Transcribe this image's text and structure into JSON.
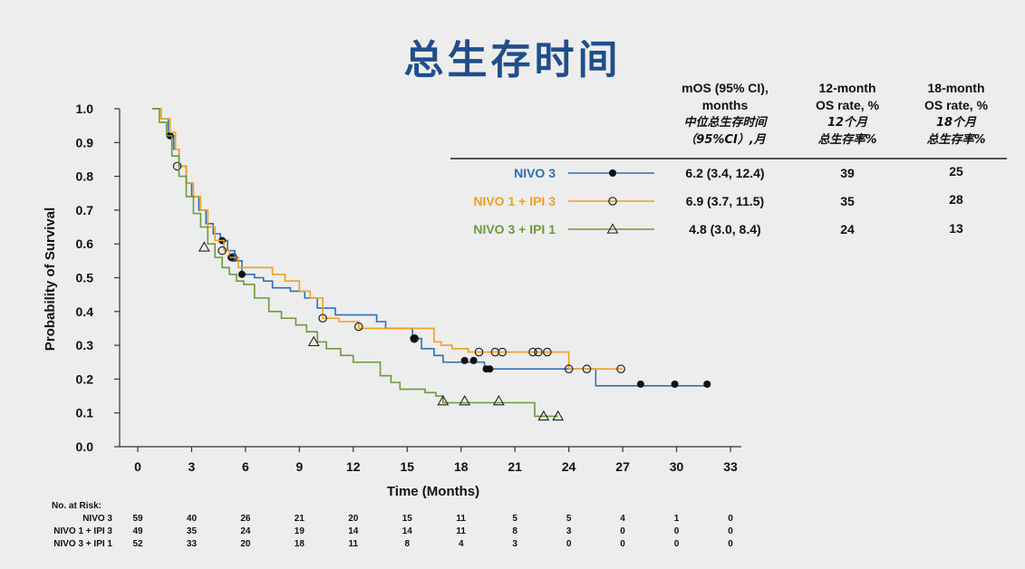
{
  "title": "总生存时间",
  "table": {
    "col1": {
      "en1": "mOS (95% CI),",
      "en2": "months",
      "zh1": "中位总生存时间",
      "zh2": "（95%CI）,月"
    },
    "col2": {
      "en1": "12-month",
      "en2": "OS rate, %",
      "zh1": "12个月",
      "zh2": "总生存率%"
    },
    "col3": {
      "en1": "18-month",
      "en2": "OS rate, %",
      "zh1": "18个月",
      "zh2": "总生存率%"
    },
    "rows": [
      {
        "name": "NIVO 3",
        "mos": "6.2 (3.4, 12.4)",
        "os12": "39",
        "os18": "25"
      },
      {
        "name": "NIVO 1 + IPI 3",
        "mos": "6.9 (3.7, 11.5)",
        "os12": "35",
        "os18": "28"
      },
      {
        "name": "NIVO 3 + IPI 1",
        "mos": "4.8 (3.0, 8.4)",
        "os12": "24",
        "os18": "13"
      }
    ]
  },
  "risk_table": {
    "header": "No. at Risk:",
    "rows": [
      {
        "label": "NIVO 3",
        "values": [
          "59",
          "40",
          "26",
          "21",
          "20",
          "15",
          "11",
          "5",
          "5",
          "4",
          "1",
          "0"
        ]
      },
      {
        "label": "NIVO 1 + IPI 3",
        "values": [
          "49",
          "35",
          "24",
          "19",
          "14",
          "14",
          "11",
          "8",
          "3",
          "0",
          "0",
          "0"
        ]
      },
      {
        "label": "NIVO 3 + IPI 1",
        "values": [
          "52",
          "33",
          "20",
          "18",
          "11",
          "8",
          "4",
          "3",
          "0",
          "0",
          "0",
          "0"
        ]
      }
    ]
  },
  "chart_data": {
    "type": "line",
    "xlabel": "Time (Months)",
    "ylabel": "Probability of Survival",
    "xlim": [
      0,
      33
    ],
    "ylim": [
      0,
      1.0
    ],
    "x_ticks": [
      "0",
      "3",
      "6",
      "9",
      "12",
      "15",
      "18",
      "21",
      "24",
      "27",
      "30",
      "33"
    ],
    "y_ticks": [
      "0.0",
      "0.1",
      "0.2",
      "0.3",
      "0.4",
      "0.5",
      "0.6",
      "0.7",
      "0.8",
      "0.9",
      "1.0"
    ],
    "grid": false,
    "series": [
      {
        "name": "NIVO 3",
        "color": "#2e6fb5",
        "marker": "filled-circle",
        "steps": [
          [
            0.8,
            1.0
          ],
          [
            1.3,
            0.97
          ],
          [
            1.7,
            0.92
          ],
          [
            2.0,
            0.88
          ],
          [
            2.3,
            0.83
          ],
          [
            2.7,
            0.78
          ],
          [
            3.0,
            0.74
          ],
          [
            3.4,
            0.7
          ],
          [
            3.8,
            0.66
          ],
          [
            4.2,
            0.63
          ],
          [
            4.6,
            0.61
          ],
          [
            5.0,
            0.58
          ],
          [
            5.4,
            0.55
          ],
          [
            5.8,
            0.51
          ],
          [
            6.5,
            0.5
          ],
          [
            7.0,
            0.49
          ],
          [
            7.5,
            0.47
          ],
          [
            8.5,
            0.46
          ],
          [
            9.3,
            0.44
          ],
          [
            10.0,
            0.41
          ],
          [
            11.0,
            0.39
          ],
          [
            13.3,
            0.37
          ],
          [
            13.8,
            0.35
          ],
          [
            15.3,
            0.32
          ],
          [
            15.8,
            0.29
          ],
          [
            16.5,
            0.27
          ],
          [
            17.0,
            0.25
          ],
          [
            19.3,
            0.23
          ],
          [
            25.5,
            0.18
          ],
          [
            31.7,
            0.18
          ]
        ],
        "censors": [
          [
            1.8,
            0.92
          ],
          [
            4.7,
            0.61
          ],
          [
            5.2,
            0.56
          ],
          [
            5.8,
            0.51
          ],
          [
            15.4,
            0.32
          ],
          [
            18.2,
            0.255
          ],
          [
            18.7,
            0.255
          ],
          [
            19.4,
            0.23
          ],
          [
            19.6,
            0.23
          ],
          [
            28.0,
            0.185
          ],
          [
            29.9,
            0.185
          ],
          [
            31.7,
            0.185
          ]
        ]
      },
      {
        "name": "NIVO 1 + IPI 3",
        "color": "#f0a020",
        "marker": "open-circle",
        "steps": [
          [
            0.8,
            1.0
          ],
          [
            1.3,
            0.97
          ],
          [
            1.8,
            0.93
          ],
          [
            2.1,
            0.88
          ],
          [
            2.3,
            0.83
          ],
          [
            2.7,
            0.78
          ],
          [
            3.1,
            0.74
          ],
          [
            3.5,
            0.7
          ],
          [
            3.9,
            0.65
          ],
          [
            4.3,
            0.61
          ],
          [
            4.8,
            0.58
          ],
          [
            5.1,
            0.56
          ],
          [
            5.6,
            0.53
          ],
          [
            7.5,
            0.51
          ],
          [
            8.2,
            0.49
          ],
          [
            9.0,
            0.46
          ],
          [
            9.6,
            0.44
          ],
          [
            10.3,
            0.38
          ],
          [
            11.2,
            0.37
          ],
          [
            12.3,
            0.35
          ],
          [
            16.5,
            0.31
          ],
          [
            16.9,
            0.3
          ],
          [
            17.5,
            0.29
          ],
          [
            18.4,
            0.28
          ],
          [
            24.0,
            0.23
          ],
          [
            27.0,
            0.23
          ]
        ],
        "censors": [
          [
            2.2,
            0.83
          ],
          [
            4.7,
            0.58
          ],
          [
            5.3,
            0.56
          ],
          [
            10.3,
            0.38
          ],
          [
            12.3,
            0.355
          ],
          [
            15.4,
            0.32
          ],
          [
            19.0,
            0.28
          ],
          [
            19.9,
            0.28
          ],
          [
            20.3,
            0.28
          ],
          [
            22.0,
            0.28
          ],
          [
            22.3,
            0.28
          ],
          [
            22.8,
            0.28
          ],
          [
            24.0,
            0.23
          ],
          [
            25.0,
            0.23
          ],
          [
            26.9,
            0.23
          ]
        ]
      },
      {
        "name": "NIVO 3 + IPI 1",
        "color": "#6b9a3c",
        "marker": "open-triangle",
        "steps": [
          [
            0.8,
            1.0
          ],
          [
            1.2,
            0.96
          ],
          [
            1.6,
            0.92
          ],
          [
            1.9,
            0.86
          ],
          [
            2.3,
            0.8
          ],
          [
            2.7,
            0.74
          ],
          [
            3.1,
            0.69
          ],
          [
            3.5,
            0.65
          ],
          [
            3.9,
            0.6
          ],
          [
            4.3,
            0.56
          ],
          [
            4.7,
            0.53
          ],
          [
            5.1,
            0.51
          ],
          [
            5.5,
            0.49
          ],
          [
            5.9,
            0.48
          ],
          [
            6.5,
            0.44
          ],
          [
            7.3,
            0.4
          ],
          [
            8.0,
            0.38
          ],
          [
            8.8,
            0.36
          ],
          [
            9.4,
            0.34
          ],
          [
            10.0,
            0.31
          ],
          [
            10.5,
            0.29
          ],
          [
            11.3,
            0.27
          ],
          [
            12.0,
            0.25
          ],
          [
            13.5,
            0.21
          ],
          [
            14.1,
            0.19
          ],
          [
            14.6,
            0.17
          ],
          [
            16.0,
            0.16
          ],
          [
            16.6,
            0.15
          ],
          [
            17.0,
            0.13
          ],
          [
            22.1,
            0.09
          ],
          [
            23.4,
            0.09
          ]
        ],
        "censors": [
          [
            3.7,
            0.59
          ],
          [
            9.8,
            0.31
          ],
          [
            17.0,
            0.135
          ],
          [
            18.2,
            0.135
          ],
          [
            20.1,
            0.135
          ],
          [
            22.6,
            0.09
          ],
          [
            23.4,
            0.09
          ]
        ]
      }
    ]
  }
}
